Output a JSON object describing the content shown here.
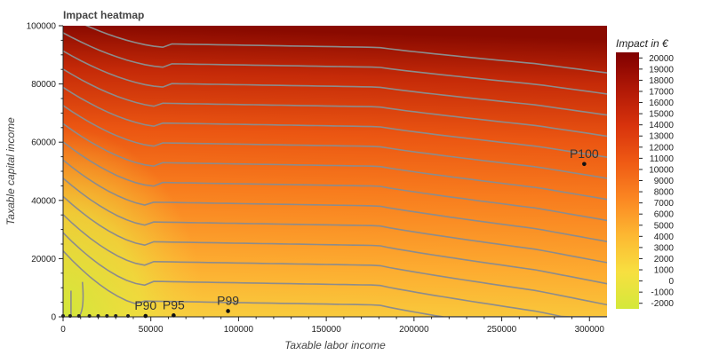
{
  "chart_data": {
    "type": "heatmap",
    "title": "Impact heatmap",
    "xlabel": "Taxable labor income",
    "ylabel": "Taxable capital income",
    "xlim": [
      0,
      310000
    ],
    "ylim": [
      0,
      100000
    ],
    "x_ticks": [
      0,
      50000,
      100000,
      150000,
      200000,
      250000,
      300000
    ],
    "x_tick_labels": [
      "0",
      "50000",
      "100000",
      "150000",
      "200000",
      "250000",
      "300000"
    ],
    "y_ticks": [
      0,
      20000,
      40000,
      60000,
      80000,
      100000
    ],
    "y_tick_labels": [
      "0",
      "20000",
      "40000",
      "60000",
      "80000",
      "100000"
    ],
    "colorbar": {
      "title": "Impact in €",
      "range": [
        -2500,
        20500
      ],
      "ticks": [
        -2000,
        -1000,
        0,
        1000,
        2000,
        3000,
        4000,
        5000,
        6000,
        7000,
        8000,
        9000,
        10000,
        11000,
        12000,
        13000,
        14000,
        15000,
        16000,
        17000,
        18000,
        19000,
        20000
      ],
      "tick_labels": [
        "-2000",
        "-1000",
        "0",
        "1000",
        "2000",
        "3000",
        "4000",
        "5000",
        "6000",
        "7000",
        "8000",
        "9000",
        "10000",
        "11000",
        "12000",
        "13000",
        "14000",
        "15000",
        "16000",
        "17000",
        "18000",
        "19000",
        "20000"
      ],
      "colors": [
        "#d4e83a",
        "#f7e040",
        "#fdb832",
        "#fb8722",
        "#ef5a14",
        "#d8330c",
        "#b01806",
        "#800000"
      ]
    },
    "contour_levels": [
      0,
      1000,
      2000,
      4000,
      5500,
      7000,
      8500,
      10000,
      11500,
      13000,
      14500,
      16000,
      17500,
      19000
    ],
    "markers": [
      {
        "label": "P90",
        "x": 47000,
        "y": 300
      },
      {
        "label": "P95",
        "x": 63000,
        "y": 500
      },
      {
        "label": "P99",
        "x": 94000,
        "y": 2000
      },
      {
        "label": "P100",
        "x": 297000,
        "y": 52500
      }
    ],
    "unlabeled_points": [
      {
        "x": 0,
        "y": 0
      },
      {
        "x": 4000,
        "y": 0
      },
      {
        "x": 9000,
        "y": 0
      },
      {
        "x": 15000,
        "y": 0
      },
      {
        "x": 20000,
        "y": 0
      },
      {
        "x": 25000,
        "y": 0
      },
      {
        "x": 30000,
        "y": 0
      },
      {
        "x": 37000,
        "y": 0
      }
    ]
  }
}
